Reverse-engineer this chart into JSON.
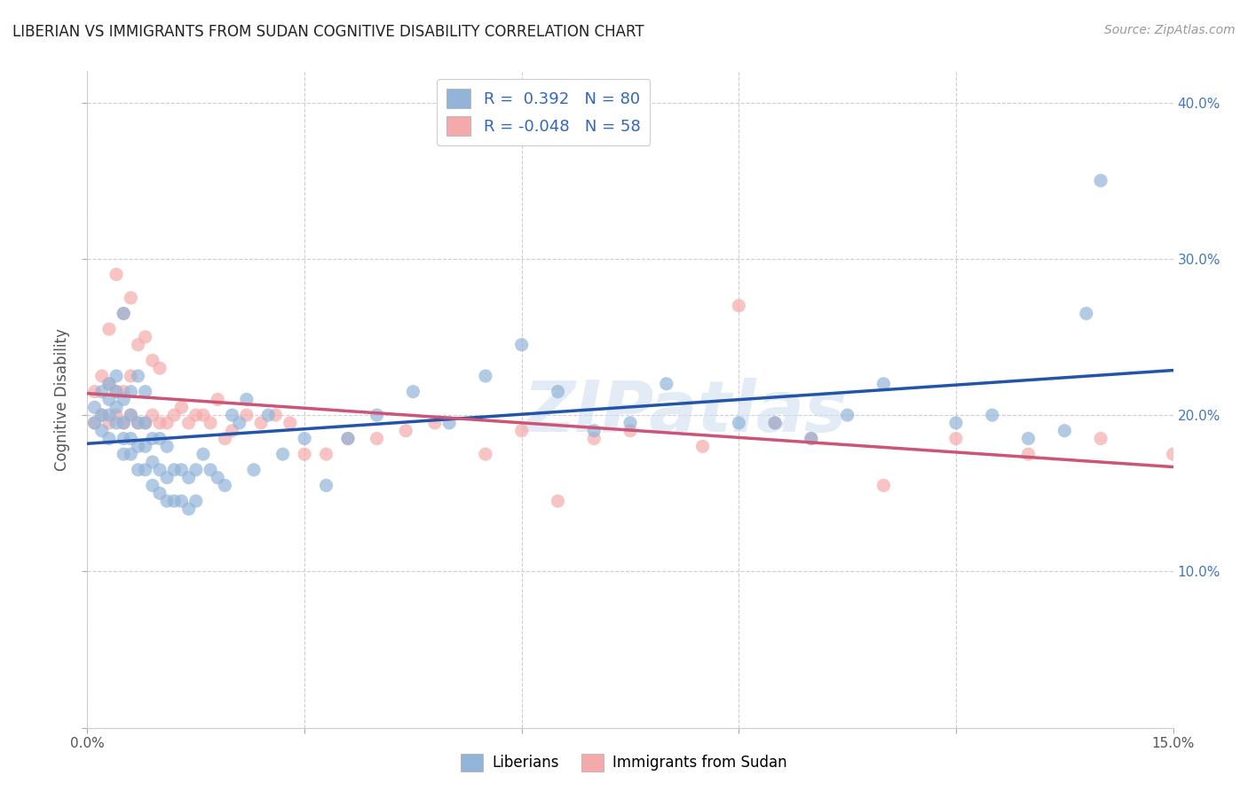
{
  "title": "LIBERIAN VS IMMIGRANTS FROM SUDAN COGNITIVE DISABILITY CORRELATION CHART",
  "source": "Source: ZipAtlas.com",
  "ylabel": "Cognitive Disability",
  "xlim": [
    0.0,
    0.15
  ],
  "ylim": [
    0.0,
    0.42
  ],
  "xticks": [
    0.0,
    0.03,
    0.06,
    0.09,
    0.12,
    0.15
  ],
  "yticks": [
    0.0,
    0.1,
    0.2,
    0.3,
    0.4
  ],
  "watermark": "ZIPatlas",
  "color_blue": "#92B4D8",
  "color_blue_line": "#2255AA",
  "color_pink": "#F4AAAA",
  "color_pink_line": "#CC5577",
  "color_dashed_grid": "#CCCCDD",
  "liberian_x": [
    0.001,
    0.001,
    0.002,
    0.002,
    0.002,
    0.003,
    0.003,
    0.003,
    0.003,
    0.004,
    0.004,
    0.004,
    0.004,
    0.005,
    0.005,
    0.005,
    0.005,
    0.005,
    0.006,
    0.006,
    0.006,
    0.006,
    0.007,
    0.007,
    0.007,
    0.007,
    0.008,
    0.008,
    0.008,
    0.008,
    0.009,
    0.009,
    0.009,
    0.01,
    0.01,
    0.01,
    0.011,
    0.011,
    0.011,
    0.012,
    0.012,
    0.013,
    0.013,
    0.014,
    0.014,
    0.015,
    0.015,
    0.016,
    0.017,
    0.018,
    0.019,
    0.02,
    0.021,
    0.022,
    0.023,
    0.025,
    0.027,
    0.03,
    0.033,
    0.036,
    0.04,
    0.045,
    0.05,
    0.055,
    0.06,
    0.065,
    0.07,
    0.075,
    0.08,
    0.09,
    0.095,
    0.1,
    0.105,
    0.11,
    0.12,
    0.125,
    0.13,
    0.135,
    0.138,
    0.14
  ],
  "liberian_y": [
    0.195,
    0.205,
    0.19,
    0.2,
    0.215,
    0.185,
    0.2,
    0.21,
    0.22,
    0.195,
    0.205,
    0.215,
    0.225,
    0.175,
    0.185,
    0.195,
    0.21,
    0.265,
    0.175,
    0.185,
    0.2,
    0.215,
    0.165,
    0.18,
    0.195,
    0.225,
    0.165,
    0.18,
    0.195,
    0.215,
    0.155,
    0.17,
    0.185,
    0.15,
    0.165,
    0.185,
    0.145,
    0.16,
    0.18,
    0.145,
    0.165,
    0.145,
    0.165,
    0.14,
    0.16,
    0.145,
    0.165,
    0.175,
    0.165,
    0.16,
    0.155,
    0.2,
    0.195,
    0.21,
    0.165,
    0.2,
    0.175,
    0.185,
    0.155,
    0.185,
    0.2,
    0.215,
    0.195,
    0.225,
    0.245,
    0.215,
    0.19,
    0.195,
    0.22,
    0.195,
    0.195,
    0.185,
    0.2,
    0.22,
    0.195,
    0.2,
    0.185,
    0.19,
    0.265,
    0.35
  ],
  "sudan_x": [
    0.001,
    0.001,
    0.002,
    0.002,
    0.003,
    0.003,
    0.003,
    0.004,
    0.004,
    0.004,
    0.005,
    0.005,
    0.005,
    0.006,
    0.006,
    0.006,
    0.007,
    0.007,
    0.008,
    0.008,
    0.009,
    0.009,
    0.01,
    0.01,
    0.011,
    0.012,
    0.013,
    0.014,
    0.015,
    0.016,
    0.017,
    0.018,
    0.019,
    0.02,
    0.022,
    0.024,
    0.026,
    0.028,
    0.03,
    0.033,
    0.036,
    0.04,
    0.044,
    0.048,
    0.055,
    0.06,
    0.065,
    0.07,
    0.075,
    0.085,
    0.09,
    0.095,
    0.1,
    0.11,
    0.12,
    0.13,
    0.14,
    0.15
  ],
  "sudan_y": [
    0.195,
    0.215,
    0.2,
    0.225,
    0.195,
    0.22,
    0.255,
    0.2,
    0.215,
    0.29,
    0.195,
    0.215,
    0.265,
    0.2,
    0.225,
    0.275,
    0.195,
    0.245,
    0.195,
    0.25,
    0.2,
    0.235,
    0.195,
    0.23,
    0.195,
    0.2,
    0.205,
    0.195,
    0.2,
    0.2,
    0.195,
    0.21,
    0.185,
    0.19,
    0.2,
    0.195,
    0.2,
    0.195,
    0.175,
    0.175,
    0.185,
    0.185,
    0.19,
    0.195,
    0.175,
    0.19,
    0.145,
    0.185,
    0.19,
    0.18,
    0.27,
    0.195,
    0.185,
    0.155,
    0.185,
    0.175,
    0.185,
    0.175
  ]
}
